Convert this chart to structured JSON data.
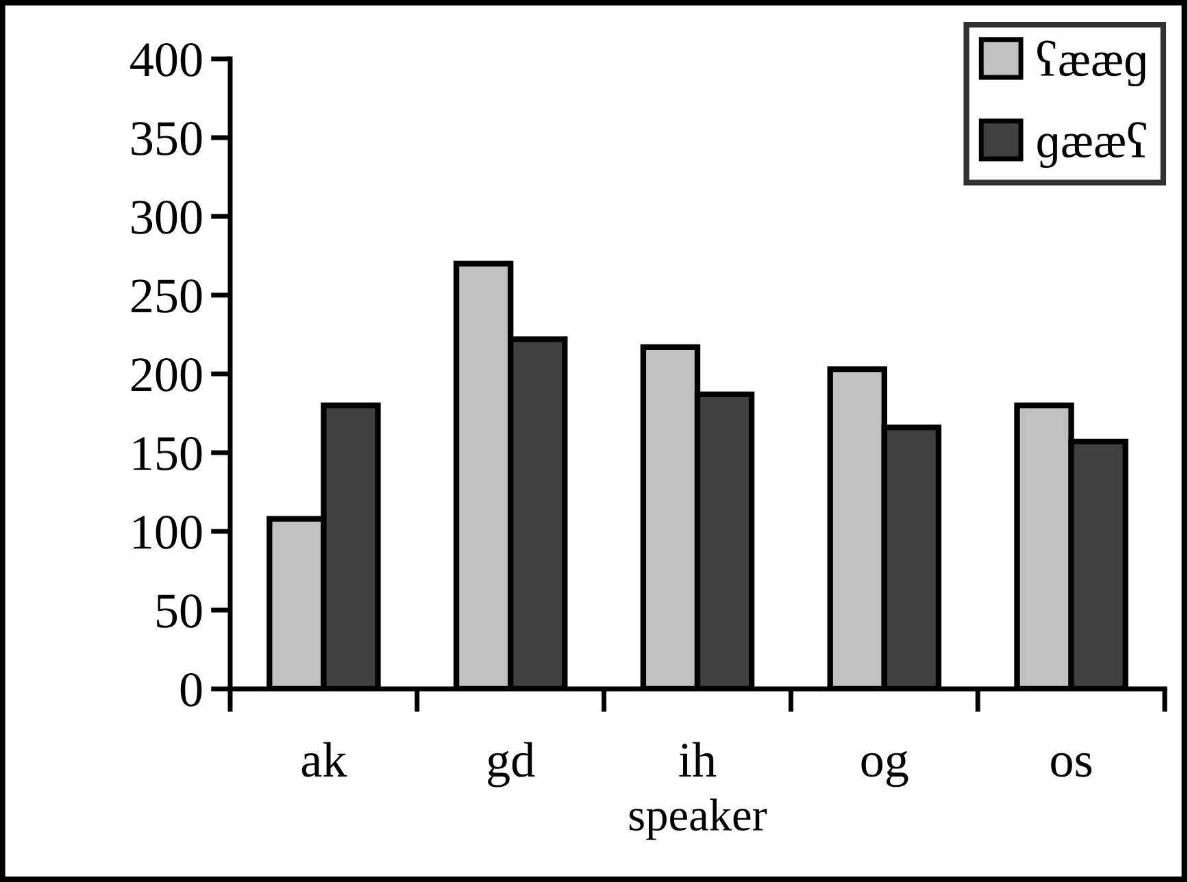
{
  "chart_data": {
    "type": "bar",
    "xlabel": "speaker",
    "categories": [
      "ak",
      "gd",
      "ih",
      "og",
      "os"
    ],
    "series": [
      {
        "name": "ʕææɡ",
        "color": "#c0c0c0",
        "values": [
          108,
          270,
          217,
          203,
          180
        ]
      },
      {
        "name": "ɡææʕ",
        "color": "#404040",
        "values": [
          180,
          222,
          187,
          166,
          157
        ]
      }
    ],
    "ylim": [
      0,
      400
    ],
    "yticks": [
      0,
      50,
      100,
      150,
      200,
      250,
      300,
      350,
      400
    ],
    "grid": false,
    "legend": "top right"
  }
}
